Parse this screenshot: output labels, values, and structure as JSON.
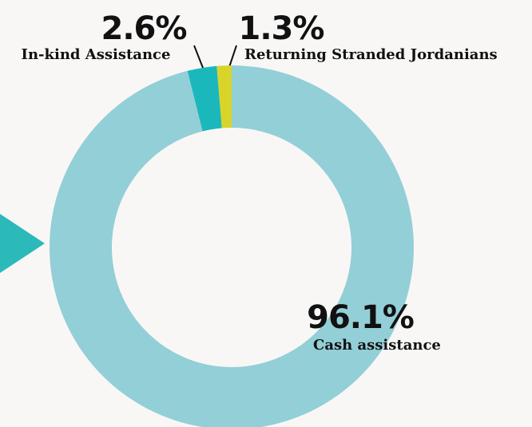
{
  "chart_data": {
    "type": "donut",
    "categories": [
      "Cash assistance",
      "In-kind Assistance",
      "Returning Stranded Jordanians"
    ],
    "values": [
      96.1,
      2.6,
      1.3
    ],
    "value_labels": [
      "96.1%",
      "2.6%",
      "1.3%"
    ],
    "colors": [
      "#93cfd7",
      "#1bb8bb",
      "#d8d42a"
    ]
  }
}
